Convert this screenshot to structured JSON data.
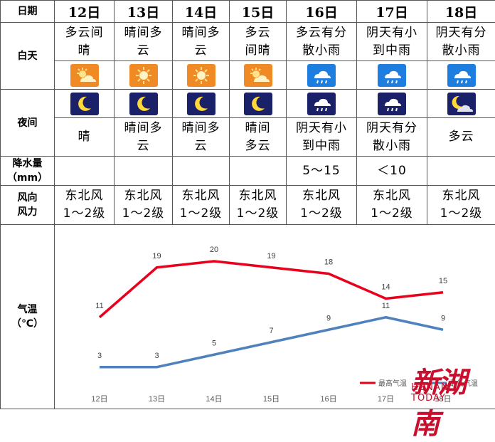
{
  "labels": {
    "date": "日期",
    "day": "白天",
    "night": "夜间",
    "precip_line1": "降水量",
    "precip_line2": "（mm）",
    "wind_line1": "风向",
    "wind_line2": "风力",
    "temp_line1": "气温",
    "temp_line2": "（℃）"
  },
  "days": [
    {
      "date": "12日",
      "day_l1": "多云间",
      "day_l2": "晴",
      "day_icon": "partly-sunny-icon",
      "night_icon": "moon-icon",
      "night_l1": "晴",
      "night_l2": "",
      "precip": "",
      "wind_dir": "东北风",
      "wind_force": "1～2级"
    },
    {
      "date": "13日",
      "day_l1": "晴间多",
      "day_l2": "云",
      "day_icon": "sun-icon",
      "night_icon": "moon-icon",
      "night_l1": "晴间多",
      "night_l2": "云",
      "precip": "",
      "wind_dir": "东北风",
      "wind_force": "1～2级"
    },
    {
      "date": "14日",
      "day_l1": "晴间多",
      "day_l2": "云",
      "day_icon": "sun-icon",
      "night_icon": "moon-icon",
      "night_l1": "晴间多",
      "night_l2": "云",
      "precip": "",
      "wind_dir": "东北风",
      "wind_force": "1～2级"
    },
    {
      "date": "15日",
      "day_l1": "多云",
      "day_l2": "间晴",
      "day_icon": "partly-sunny-icon",
      "night_icon": "moon-icon",
      "night_l1": "晴间",
      "night_l2": "多云",
      "precip": "",
      "wind_dir": "东北风",
      "wind_force": "1～2级"
    },
    {
      "date": "16日",
      "day_l1": "多云有分",
      "day_l2": "散小雨",
      "day_icon": "rain-cloud-icon",
      "night_icon": "night-rain-icon",
      "night_l1": "阴天有小",
      "night_l2": "到中雨",
      "precip": "5～15",
      "wind_dir": "东北风",
      "wind_force": "1～2级"
    },
    {
      "date": "17日",
      "day_l1": "阴天有小",
      "day_l2": "到中雨",
      "day_icon": "rain-cloud-icon",
      "night_icon": "night-rain-icon",
      "night_l1": "阴天有分",
      "night_l2": "散小雨",
      "precip": "＜10",
      "wind_dir": "东北风",
      "wind_force": "1～2级"
    },
    {
      "date": "18日",
      "day_l1": "阴天有分",
      "day_l2": "散小雨",
      "day_icon": "rain-cloud-icon",
      "night_icon": "night-cloud-icon",
      "night_l1": "多云",
      "night_l2": "",
      "precip": "",
      "wind_dir": "东北风",
      "wind_force": "1～2级"
    }
  ],
  "colors": {
    "high": "#e8001c",
    "low": "#4f81bd",
    "day_icon_bg": "#f08a24",
    "rain_icon_bg": "#1e7ee0",
    "night_icon_bg": "#1a2168"
  },
  "chart_data": {
    "type": "line",
    "categories": [
      "12日",
      "13日",
      "14日",
      "15日",
      "16日",
      "17日",
      "18日"
    ],
    "series": [
      {
        "name": "最高气温",
        "values": [
          11,
          19,
          20,
          19,
          18,
          14,
          15
        ]
      },
      {
        "name": "最低气温",
        "values": [
          3,
          3,
          5,
          7,
          9,
          11,
          9
        ]
      }
    ],
    "ylim": [
      0,
      24
    ],
    "grid": false,
    "legend": "bottom-right"
  },
  "watermark": {
    "cn": "新湖南",
    "en": "HUNAN TODAY"
  }
}
